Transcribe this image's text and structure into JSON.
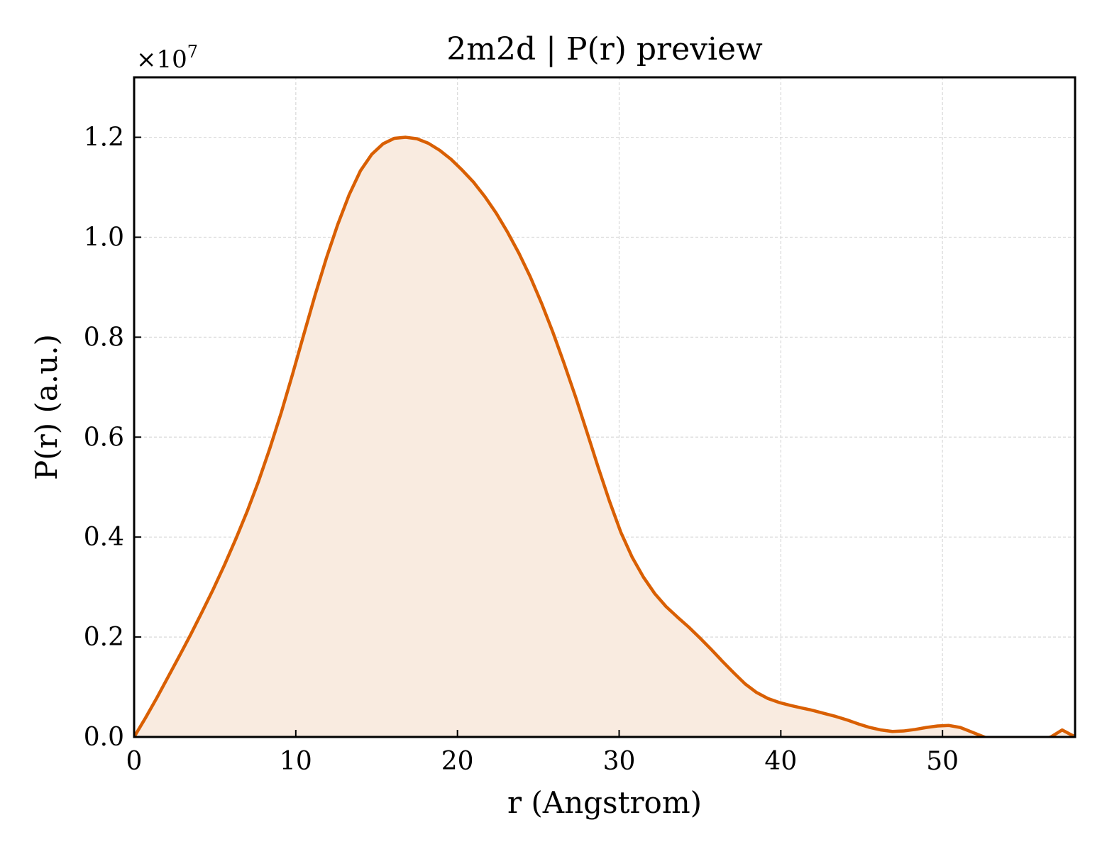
{
  "chart_data": {
    "type": "area",
    "title": "2m2d | P(r) preview",
    "xlabel": "r (Angstrom)",
    "ylabel": "P(r) (a.u.)",
    "y_multiplier_label": "×10",
    "y_multiplier_exponent": "7",
    "xlim": [
      0,
      58.2
    ],
    "ylim": [
      0,
      1.32
    ],
    "x_ticks": [
      0,
      10,
      20,
      30,
      40,
      50
    ],
    "x_tick_labels": [
      "0",
      "10",
      "20",
      "30",
      "40",
      "50"
    ],
    "y_ticks": [
      0,
      0.2,
      0.4,
      0.6,
      0.8,
      1.0,
      1.2
    ],
    "y_tick_labels": [
      "0.0",
      "0.2",
      "0.4",
      "0.6",
      "0.8",
      "1.0",
      "1.2"
    ],
    "grid": true,
    "colors": {
      "line": "#d95f02",
      "fill": "#f9ebe0",
      "grid": "#d9d9d9",
      "axes": "#000000"
    },
    "series": [
      {
        "x": [
          0.0,
          0.7,
          1.4,
          2.1,
          2.8,
          3.5,
          4.2,
          4.9,
          5.6,
          6.3,
          7.0,
          7.7,
          8.4,
          9.1,
          9.8,
          10.5,
          11.2,
          11.9,
          12.6,
          13.3,
          14.0,
          14.7,
          15.4,
          16.1,
          16.8,
          17.5,
          18.2,
          18.9,
          19.6,
          20.3,
          21.0,
          21.7,
          22.4,
          23.1,
          23.8,
          24.5,
          25.2,
          25.9,
          26.6,
          27.3,
          28.0,
          28.7,
          29.4,
          30.1,
          30.8,
          31.5,
          32.2,
          32.9,
          33.6,
          34.3,
          35.0,
          35.7,
          36.4,
          37.1,
          37.8,
          38.5,
          39.2,
          39.9,
          40.6,
          41.3,
          42.0,
          42.7,
          43.4,
          44.1,
          44.8,
          45.5,
          46.2,
          46.9,
          47.6,
          48.3,
          49.0,
          49.7,
          50.4,
          51.1,
          51.8,
          52.5,
          53.2,
          53.9,
          54.6,
          55.3,
          56.0,
          56.7,
          57.4,
          58.1
        ],
        "y": [
          0.0,
          0.038,
          0.078,
          0.12,
          0.162,
          0.205,
          0.25,
          0.296,
          0.345,
          0.397,
          0.452,
          0.512,
          0.578,
          0.649,
          0.726,
          0.806,
          0.885,
          0.959,
          1.026,
          1.085,
          1.133,
          1.166,
          1.187,
          1.198,
          1.2,
          1.197,
          1.188,
          1.174,
          1.156,
          1.134,
          1.11,
          1.081,
          1.048,
          1.01,
          0.968,
          0.921,
          0.868,
          0.81,
          0.747,
          0.681,
          0.611,
          0.54,
          0.472,
          0.41,
          0.36,
          0.32,
          0.287,
          0.261,
          0.24,
          0.22,
          0.198,
          0.175,
          0.151,
          0.128,
          0.106,
          0.089,
          0.077,
          0.069,
          0.063,
          0.058,
          0.053,
          0.047,
          0.041,
          0.034,
          0.026,
          0.019,
          0.014,
          0.011,
          0.012,
          0.015,
          0.019,
          0.022,
          0.023,
          0.019,
          0.01,
          0.001,
          -0.008,
          -0.014,
          -0.016,
          -0.013,
          -0.006,
          0.0,
          0.014,
          0.002
        ]
      }
    ]
  }
}
